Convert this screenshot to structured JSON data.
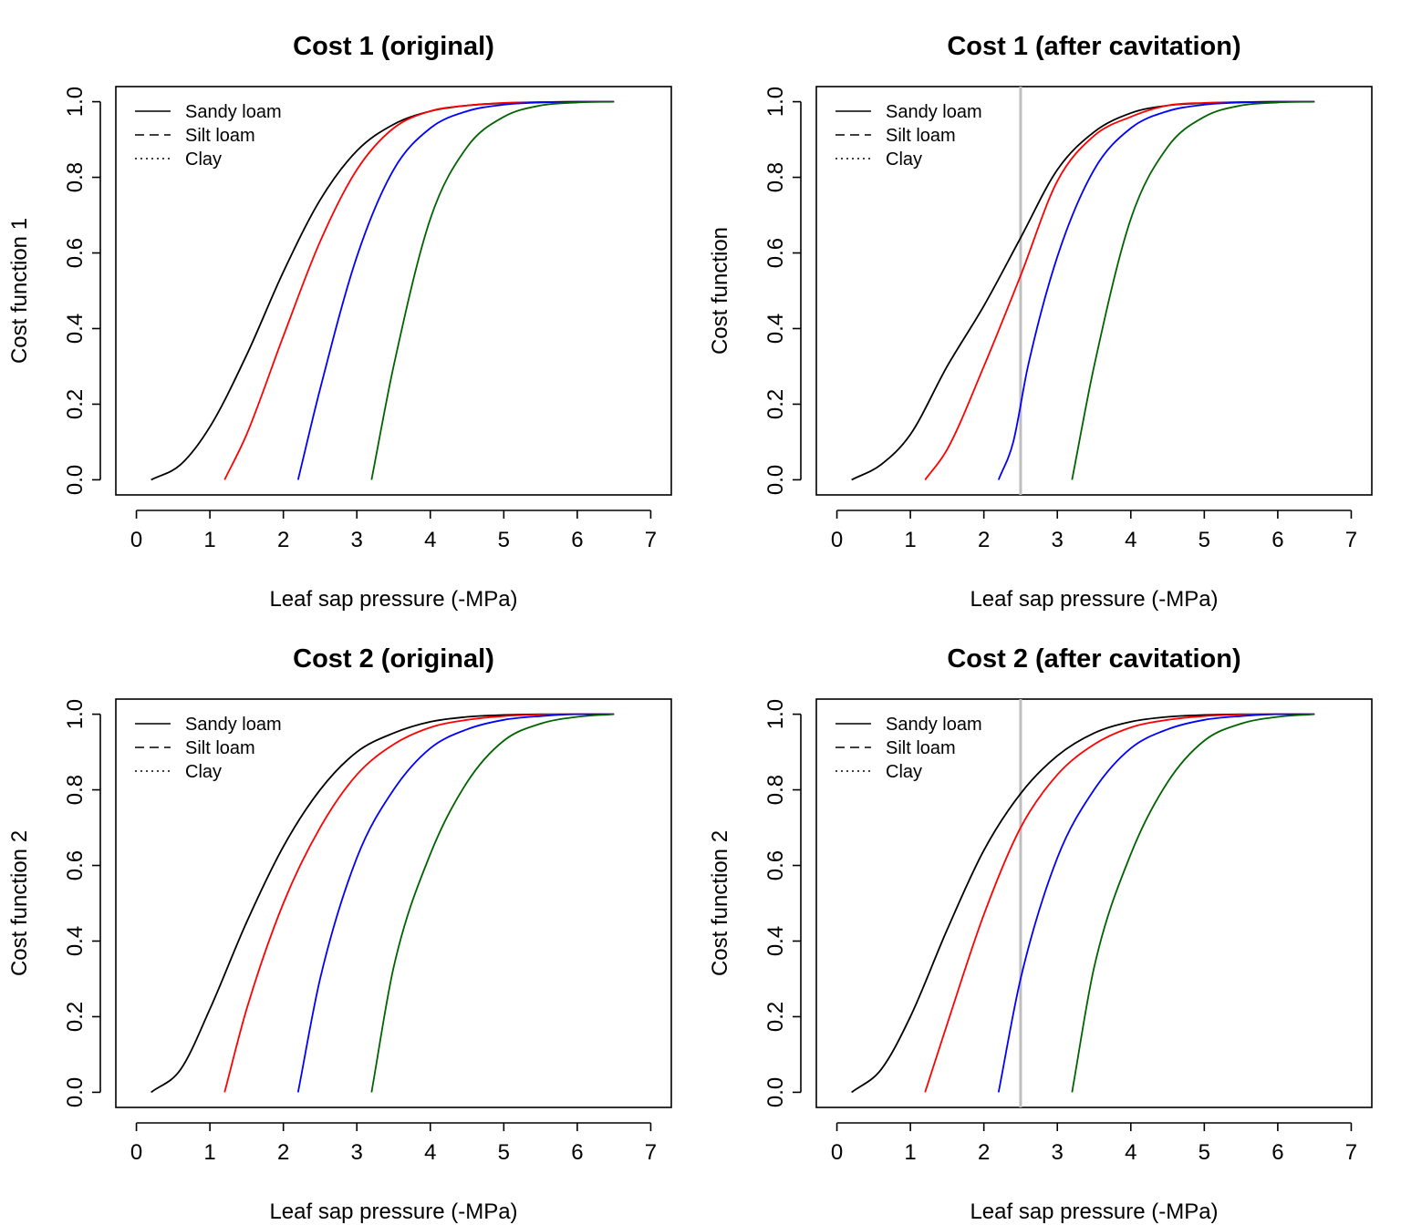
{
  "figure": {
    "legend_entries": [
      {
        "label": "Sandy loam",
        "linestyle": "solid"
      },
      {
        "label": "Silt loam",
        "linestyle": "dashed"
      },
      {
        "label": "Clay",
        "linestyle": "dotted"
      }
    ],
    "curve_colors": [
      "#000000",
      "#ff0000",
      "#0000ff",
      "#006400"
    ],
    "cavitation_line_color": "#bebebe"
  },
  "chart_data": [
    {
      "type": "line",
      "title": "Cost 1 (original)",
      "xlabel": "Leaf sap pressure (-MPa)",
      "ylabel": "Cost function 1",
      "xlim": [
        0,
        7
      ],
      "ylim": [
        0,
        1
      ],
      "xticks": [
        "0",
        "1",
        "2",
        "3",
        "4",
        "5",
        "6",
        "7"
      ],
      "yticks": [
        "0.0",
        "0.2",
        "0.4",
        "0.6",
        "0.8",
        "1.0"
      ],
      "legend": "top-left",
      "grid": false,
      "vline": null,
      "series": [
        {
          "color": "#000000",
          "x": [
            0.2,
            0.6,
            1.0,
            1.5,
            2.0,
            2.5,
            3.0,
            3.5,
            4.0,
            4.5,
            5.0,
            5.5,
            6.0,
            6.5
          ],
          "y": [
            0.0,
            0.04,
            0.14,
            0.33,
            0.55,
            0.74,
            0.87,
            0.94,
            0.975,
            0.99,
            0.996,
            0.999,
            1.0,
            1.0
          ]
        },
        {
          "color": "#ff0000",
          "x": [
            1.2,
            1.5,
            2.0,
            2.5,
            3.0,
            3.5,
            4.0,
            4.5,
            5.0,
            5.5,
            6.0,
            6.5
          ],
          "y": [
            0.0,
            0.12,
            0.38,
            0.63,
            0.82,
            0.93,
            0.975,
            0.99,
            0.997,
            0.999,
            1.0,
            1.0
          ]
        },
        {
          "color": "#0000ff",
          "x": [
            2.2,
            2.5,
            3.0,
            3.5,
            4.0,
            4.5,
            5.0,
            5.5,
            6.0,
            6.5
          ],
          "y": [
            0.0,
            0.24,
            0.59,
            0.82,
            0.93,
            0.975,
            0.992,
            0.998,
            1.0,
            1.0
          ]
        },
        {
          "color": "#006400",
          "x": [
            3.2,
            3.5,
            4.0,
            4.5,
            5.0,
            5.5,
            6.0,
            6.5
          ],
          "y": [
            0.0,
            0.3,
            0.69,
            0.88,
            0.96,
            0.99,
            0.998,
            1.0
          ]
        }
      ]
    },
    {
      "type": "line",
      "title": "Cost 1 (after cavitation)",
      "xlabel": "Leaf sap pressure (-MPa)",
      "ylabel": "Cost function",
      "xlim": [
        0,
        7
      ],
      "ylim": [
        0,
        1
      ],
      "xticks": [
        "0",
        "1",
        "2",
        "3",
        "4",
        "5",
        "6",
        "7"
      ],
      "yticks": [
        "0.0",
        "0.2",
        "0.4",
        "0.6",
        "0.8",
        "1.0"
      ],
      "legend": "top-left",
      "grid": false,
      "vline": 2.5,
      "series": [
        {
          "color": "#000000",
          "x": [
            0.2,
            0.6,
            1.0,
            1.5,
            2.0,
            2.5,
            3.0,
            3.5,
            4.0,
            4.5,
            5.0,
            5.5,
            6.0,
            6.5
          ],
          "y": [
            0.0,
            0.04,
            0.12,
            0.3,
            0.46,
            0.64,
            0.82,
            0.92,
            0.97,
            0.99,
            0.996,
            0.999,
            1.0,
            1.0
          ]
        },
        {
          "color": "#ff0000",
          "x": [
            1.2,
            1.5,
            2.0,
            2.5,
            3.0,
            3.5,
            4.0,
            4.5,
            5.0,
            5.5,
            6.0,
            6.5
          ],
          "y": [
            0.0,
            0.08,
            0.3,
            0.54,
            0.79,
            0.91,
            0.96,
            0.99,
            0.997,
            0.999,
            1.0,
            1.0
          ]
        },
        {
          "color": "#0000ff",
          "x": [
            2.2,
            2.4,
            2.6,
            3.0,
            3.5,
            4.0,
            4.5,
            5.0,
            5.5,
            6.0,
            6.5
          ],
          "y": [
            0.0,
            0.1,
            0.3,
            0.59,
            0.82,
            0.93,
            0.975,
            0.992,
            0.998,
            1.0,
            1.0
          ]
        },
        {
          "color": "#006400",
          "x": [
            3.2,
            3.5,
            4.0,
            4.5,
            5.0,
            5.5,
            6.0,
            6.5
          ],
          "y": [
            0.0,
            0.3,
            0.69,
            0.88,
            0.96,
            0.99,
            0.998,
            1.0
          ]
        }
      ]
    },
    {
      "type": "line",
      "title": "Cost 2 (original)",
      "xlabel": "Leaf sap pressure (-MPa)",
      "ylabel": "Cost function 2",
      "xlim": [
        0,
        7
      ],
      "ylim": [
        0,
        1
      ],
      "xticks": [
        "0",
        "1",
        "2",
        "3",
        "4",
        "5",
        "6",
        "7"
      ],
      "yticks": [
        "0.0",
        "0.2",
        "0.4",
        "0.6",
        "0.8",
        "1.0"
      ],
      "legend": "top-left",
      "grid": false,
      "vline": null,
      "series": [
        {
          "color": "#000000",
          "x": [
            0.2,
            0.6,
            1.0,
            1.5,
            2.0,
            2.5,
            3.0,
            3.5,
            4.0,
            4.5,
            5.0,
            5.5,
            6.0,
            6.5
          ],
          "y": [
            0.0,
            0.06,
            0.22,
            0.45,
            0.65,
            0.8,
            0.9,
            0.95,
            0.98,
            0.993,
            0.998,
            1.0,
            1.0,
            1.0
          ]
        },
        {
          "color": "#ff0000",
          "x": [
            1.2,
            1.5,
            2.0,
            2.5,
            3.0,
            3.5,
            4.0,
            4.5,
            5.0,
            5.5,
            6.0,
            6.5
          ],
          "y": [
            0.0,
            0.22,
            0.5,
            0.7,
            0.84,
            0.92,
            0.965,
            0.985,
            0.995,
            0.999,
            1.0,
            1.0
          ]
        },
        {
          "color": "#0000ff",
          "x": [
            2.2,
            2.5,
            3.0,
            3.5,
            4.0,
            4.5,
            5.0,
            5.5,
            6.0,
            6.5
          ],
          "y": [
            0.0,
            0.3,
            0.62,
            0.8,
            0.91,
            0.96,
            0.985,
            0.995,
            1.0,
            1.0
          ]
        },
        {
          "color": "#006400",
          "x": [
            3.2,
            3.5,
            4.0,
            4.5,
            5.0,
            5.5,
            6.0,
            6.5
          ],
          "y": [
            0.0,
            0.33,
            0.63,
            0.82,
            0.93,
            0.975,
            0.993,
            1.0
          ]
        }
      ]
    },
    {
      "type": "line",
      "title": "Cost 2 (after cavitation)",
      "xlabel": "Leaf sap pressure (-MPa)",
      "ylabel": "Cost function 2",
      "xlim": [
        0,
        7
      ],
      "ylim": [
        0,
        1
      ],
      "xticks": [
        "0",
        "1",
        "2",
        "3",
        "4",
        "5",
        "6",
        "7"
      ],
      "yticks": [
        "0.0",
        "0.2",
        "0.4",
        "0.6",
        "0.8",
        "1.0"
      ],
      "legend": "top-left",
      "grid": false,
      "vline": 2.5,
      "series": [
        {
          "color": "#000000",
          "x": [
            0.2,
            0.6,
            1.0,
            1.5,
            2.0,
            2.5,
            3.0,
            3.5,
            4.0,
            4.5,
            5.0,
            5.5,
            6.0,
            6.5
          ],
          "y": [
            0.0,
            0.06,
            0.2,
            0.43,
            0.64,
            0.79,
            0.89,
            0.95,
            0.98,
            0.993,
            0.998,
            1.0,
            1.0,
            1.0
          ]
        },
        {
          "color": "#ff0000",
          "x": [
            1.2,
            1.5,
            2.0,
            2.5,
            3.0,
            3.5,
            4.0,
            4.5,
            5.0,
            5.5,
            6.0,
            6.5
          ],
          "y": [
            0.0,
            0.18,
            0.47,
            0.7,
            0.84,
            0.92,
            0.965,
            0.985,
            0.995,
            0.999,
            1.0,
            1.0
          ]
        },
        {
          "color": "#0000ff",
          "x": [
            2.2,
            2.5,
            3.0,
            3.5,
            4.0,
            4.5,
            5.0,
            5.5,
            6.0,
            6.5
          ],
          "y": [
            0.0,
            0.3,
            0.62,
            0.8,
            0.91,
            0.96,
            0.985,
            0.995,
            1.0,
            1.0
          ]
        },
        {
          "color": "#006400",
          "x": [
            3.2,
            3.5,
            4.0,
            4.5,
            5.0,
            5.5,
            6.0,
            6.5
          ],
          "y": [
            0.0,
            0.33,
            0.63,
            0.82,
            0.93,
            0.975,
            0.993,
            1.0
          ]
        }
      ]
    }
  ]
}
